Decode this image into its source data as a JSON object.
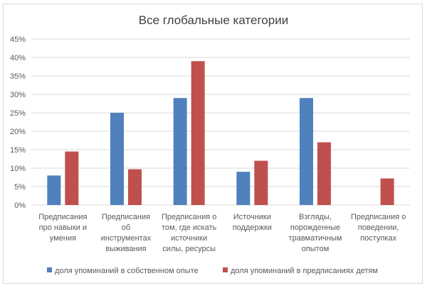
{
  "chart_data": {
    "type": "bar",
    "title": "Все глобальные категории",
    "xlabel": "",
    "ylabel": "",
    "ylim": [
      0,
      45
    ],
    "y_tick_step": 5,
    "y_unit": "%",
    "grid": true,
    "legend_position": "bottom",
    "categories": [
      [
        "Предписания",
        "про навыки и",
        "умения"
      ],
      [
        "Предписания",
        "об",
        "инструментах",
        "выживания"
      ],
      [
        "Предписания о",
        "том, где искать",
        "источники",
        "силы, ресурсы"
      ],
      [
        "Источники",
        "поддержки"
      ],
      [
        "Взгляды,",
        "порожденные",
        "травматичным",
        "опытом"
      ],
      [
        "Предписания о",
        "поведении,",
        "поступках"
      ]
    ],
    "series": [
      {
        "name": "доля упоминаний в собственном опыте",
        "color": "#4f81bd",
        "values": [
          8,
          25,
          29,
          9,
          29,
          null
        ]
      },
      {
        "name": "доля упоминаний в предписаниях детям",
        "color": "#c0504d",
        "values": [
          14.5,
          9.7,
          39,
          12,
          17,
          7.2
        ]
      }
    ]
  }
}
